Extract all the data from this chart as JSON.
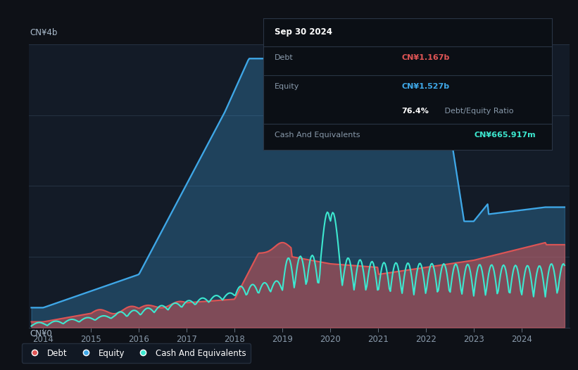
{
  "bg_color": "#0e1117",
  "plot_bg_color": "#131b27",
  "y_label_top": "CN¥4b",
  "y_label_bottom": "CN¥0",
  "x_ticks": [
    2014,
    2015,
    2016,
    2017,
    2018,
    2019,
    2020,
    2021,
    2022,
    2023,
    2024
  ],
  "debt_color": "#e05555",
  "equity_color": "#3fa8e8",
  "cash_color": "#3de8d0",
  "debt_label": "CN¥1.167b",
  "equity_label": "CN¥1.527b",
  "ratio_label": "76.4%",
  "cash_label": "CN¥665.917m",
  "legend_labels": [
    "Debt",
    "Equity",
    "Cash And Equivalents"
  ],
  "ylim": [
    0,
    4000000000.0
  ],
  "xlim": [
    2013.7,
    2025.0
  ]
}
